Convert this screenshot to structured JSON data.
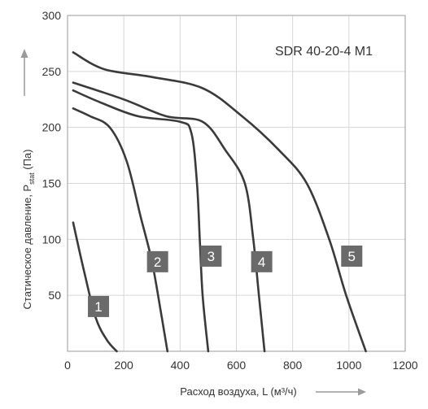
{
  "chart_data": {
    "type": "line",
    "title": "SDR 40-20-4 M1",
    "xlabel": "Расход воздуха, L (м³/ч)",
    "ylabel_prefix": "Статическое давление, P",
    "ylabel_sub": "stat",
    "ylabel_suffix": " (Па)",
    "xlim": [
      0,
      1200
    ],
    "ylim": [
      0,
      300
    ],
    "x_ticks": [
      "0",
      "200",
      "400",
      "600",
      "800",
      "1000",
      "1200"
    ],
    "y_ticks": [
      "50",
      "100",
      "150",
      "200",
      "250",
      "300"
    ],
    "grid": true,
    "colors": {
      "line": "#3a3a3a",
      "grid": "#d6d6d6",
      "axis": "#9a9a9a",
      "badge": "#6a6a6a"
    },
    "series": [
      {
        "name": "1",
        "points": [
          [
            20,
            115
          ],
          [
            60,
            70
          ],
          [
            100,
            30
          ],
          [
            140,
            10
          ],
          [
            175,
            0
          ]
        ],
        "label_at": [
          110,
          40
        ]
      },
      {
        "name": "2",
        "points": [
          [
            20,
            217
          ],
          [
            80,
            210
          ],
          [
            150,
            200
          ],
          [
            210,
            170
          ],
          [
            260,
            120
          ],
          [
            300,
            80
          ],
          [
            335,
            30
          ],
          [
            355,
            0
          ]
        ],
        "label_at": [
          320,
          80
        ]
      },
      {
        "name": "3",
        "points": [
          [
            20,
            233
          ],
          [
            120,
            222
          ],
          [
            250,
            210
          ],
          [
            400,
            205
          ],
          [
            440,
            195
          ],
          [
            460,
            150
          ],
          [
            470,
            100
          ],
          [
            480,
            50
          ],
          [
            500,
            0
          ]
        ],
        "label_at": [
          510,
          85
        ]
      },
      {
        "name": "4",
        "points": [
          [
            20,
            240
          ],
          [
            200,
            225
          ],
          [
            350,
            210
          ],
          [
            480,
            205
          ],
          [
            560,
            180
          ],
          [
            630,
            150
          ],
          [
            660,
            100
          ],
          [
            680,
            50
          ],
          [
            700,
            0
          ]
        ],
        "label_at": [
          690,
          80
        ]
      },
      {
        "name": "5",
        "points": [
          [
            20,
            267
          ],
          [
            130,
            252
          ],
          [
            300,
            245
          ],
          [
            480,
            235
          ],
          [
            620,
            210
          ],
          [
            750,
            180
          ],
          [
            850,
            150
          ],
          [
            930,
            100
          ],
          [
            990,
            50
          ],
          [
            1060,
            0
          ]
        ],
        "label_at": [
          1010,
          85
        ]
      }
    ]
  }
}
